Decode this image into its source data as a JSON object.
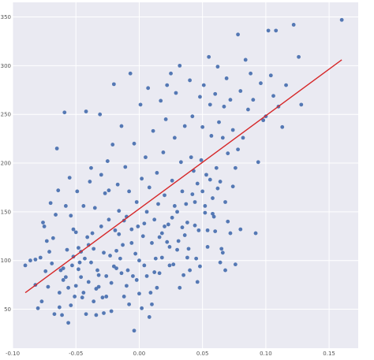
{
  "chart_data": {
    "type": "scatter",
    "title": "",
    "xlabel": "",
    "ylabel": "",
    "xlim": [
      -0.1,
      0.173
    ],
    "ylim": [
      10,
      365
    ],
    "xticks": [
      -0.1,
      -0.05,
      0.0,
      0.05,
      0.1,
      0.15
    ],
    "xtick_labels": [
      "-0.10",
      "-0.05",
      "0.00",
      "0.05",
      "0.10",
      "0.15"
    ],
    "yticks": [
      50,
      100,
      150,
      200,
      250,
      300,
      350
    ],
    "ytick_labels": [
      "50",
      "100",
      "150",
      "200",
      "250",
      "300",
      "350"
    ],
    "grid": true,
    "colors": {
      "plot_background": "#eaeaf2",
      "grid": "#ffffff",
      "points": "#4c72b0",
      "line": "#d62728",
      "tick_text": "#555555"
    },
    "series": [
      {
        "kind": "scatter",
        "points": [
          [
            -0.09,
            95
          ],
          [
            -0.082,
            101
          ],
          [
            -0.08,
            51
          ],
          [
            -0.078,
            103
          ],
          [
            -0.076,
            139
          ],
          [
            -0.075,
            135
          ],
          [
            -0.073,
            120
          ],
          [
            -0.072,
            73
          ],
          [
            -0.07,
            159
          ],
          [
            -0.068,
            123
          ],
          [
            -0.066,
            147
          ],
          [
            -0.065,
            215
          ],
          [
            -0.064,
            172
          ],
          [
            -0.063,
            67
          ],
          [
            -0.062,
            90
          ],
          [
            -0.061,
            44
          ],
          [
            -0.06,
            80
          ],
          [
            -0.059,
            252
          ],
          [
            -0.058,
            156
          ],
          [
            -0.057,
            111
          ],
          [
            -0.056,
            72
          ],
          [
            -0.055,
            185
          ],
          [
            -0.054,
            146
          ],
          [
            -0.053,
            95
          ],
          [
            -0.052,
            104
          ],
          [
            -0.051,
            63
          ],
          [
            -0.05,
            129
          ],
          [
            -0.049,
            171
          ],
          [
            -0.048,
            113
          ],
          [
            -0.047,
            98
          ],
          [
            -0.046,
            83
          ],
          [
            -0.045,
            62
          ],
          [
            -0.044,
            156
          ],
          [
            -0.043,
            102
          ],
          [
            -0.042,
            253
          ],
          [
            -0.041,
            124
          ],
          [
            -0.04,
            78
          ],
          [
            -0.039,
            181
          ],
          [
            -0.038,
            195
          ],
          [
            -0.037,
            128
          ],
          [
            -0.036,
            112
          ],
          [
            -0.035,
            154
          ],
          [
            -0.034,
            71
          ],
          [
            -0.033,
            90
          ],
          [
            -0.032,
            85
          ],
          [
            -0.031,
            250
          ],
          [
            -0.03,
            135
          ],
          [
            -0.029,
            62
          ],
          [
            -0.028,
            108
          ],
          [
            -0.027,
            169
          ],
          [
            -0.026,
            84
          ],
          [
            -0.025,
            202
          ],
          [
            -0.024,
            142
          ],
          [
            -0.023,
            105
          ],
          [
            -0.022,
            77
          ],
          [
            -0.021,
            219
          ],
          [
            -0.02,
            281
          ],
          [
            -0.019,
            131
          ],
          [
            -0.018,
            92
          ],
          [
            -0.017,
            178
          ],
          [
            -0.016,
            151
          ],
          [
            -0.015,
            102
          ],
          [
            -0.014,
            238
          ],
          [
            -0.013,
            116
          ],
          [
            -0.012,
            63
          ],
          [
            -0.011,
            196
          ],
          [
            -0.01,
            145
          ],
          [
            -0.009,
            90
          ],
          [
            -0.008,
            171
          ],
          [
            -0.007,
            292
          ],
          [
            -0.006,
            132
          ],
          [
            -0.005,
            84
          ],
          [
            -0.004,
            220
          ],
          [
            -0.003,
            107
          ],
          [
            -0.002,
            160
          ],
          [
            -0.001,
            135
          ],
          [
            0.0,
            100
          ],
          [
            0.001,
            260
          ],
          [
            0.002,
            184
          ],
          [
            0.003,
            125
          ],
          [
            0.004,
            95
          ],
          [
            0.005,
            206
          ],
          [
            0.006,
            150
          ],
          [
            0.007,
            277
          ],
          [
            0.008,
            175
          ],
          [
            0.009,
            67
          ],
          [
            0.01,
            118
          ],
          [
            0.011,
            233
          ],
          [
            0.012,
            142
          ],
          [
            0.013,
            102
          ],
          [
            0.014,
            190
          ],
          [
            0.015,
            158
          ],
          [
            0.016,
            87
          ],
          [
            0.017,
            264
          ],
          [
            0.018,
            128
          ],
          [
            0.019,
            211
          ],
          [
            0.02,
            167
          ],
          [
            0.021,
            245
          ],
          [
            0.022,
            280
          ],
          [
            0.023,
            137
          ],
          [
            0.024,
            114
          ],
          [
            0.025,
            292
          ],
          [
            0.026,
            182
          ],
          [
            0.027,
            96
          ],
          [
            0.028,
            226
          ],
          [
            0.029,
            272
          ],
          [
            0.03,
            150
          ],
          [
            0.031,
            120
          ],
          [
            0.032,
            300
          ],
          [
            0.033,
            201
          ],
          [
            0.034,
            171
          ],
          [
            0.035,
            85
          ],
          [
            0.036,
            238
          ],
          [
            0.037,
            158
          ],
          [
            0.038,
            139
          ],
          [
            0.039,
            112
          ],
          [
            0.04,
            285
          ],
          [
            0.041,
            206
          ],
          [
            0.042,
            248
          ],
          [
            0.043,
            192
          ],
          [
            0.044,
            160
          ],
          [
            0.045,
            102
          ],
          [
            0.046,
            179
          ],
          [
            0.047,
            131
          ],
          [
            0.048,
            268
          ],
          [
            0.049,
            203
          ],
          [
            0.05,
            237
          ],
          [
            0.051,
            280
          ],
          [
            0.052,
            149
          ],
          [
            0.053,
            188
          ],
          [
            0.054,
            114
          ],
          [
            0.055,
            309
          ],
          [
            0.056,
            260
          ],
          [
            0.057,
            228
          ],
          [
            0.058,
            164
          ],
          [
            0.059,
            145
          ],
          [
            0.06,
            271
          ],
          [
            0.061,
            195
          ],
          [
            0.062,
            299
          ],
          [
            0.063,
            242
          ],
          [
            0.064,
            181
          ],
          [
            0.065,
            112
          ],
          [
            0.066,
            226
          ],
          [
            0.067,
            258
          ],
          [
            0.068,
            160
          ],
          [
            0.069,
            287
          ],
          [
            0.07,
            210
          ],
          [
            0.072,
            265
          ],
          [
            0.074,
            234
          ],
          [
            0.076,
            195
          ],
          [
            0.078,
            332
          ],
          [
            0.08,
            274
          ],
          [
            0.082,
            226
          ],
          [
            0.084,
            306
          ],
          [
            0.086,
            255
          ],
          [
            0.088,
            292
          ],
          [
            0.09,
            265
          ],
          [
            0.092,
            128
          ],
          [
            0.094,
            201
          ],
          [
            0.096,
            282
          ],
          [
            0.098,
            244
          ],
          [
            0.1,
            248
          ],
          [
            0.102,
            336
          ],
          [
            0.104,
            290
          ],
          [
            0.106,
            269
          ],
          [
            0.108,
            336
          ],
          [
            0.11,
            258
          ],
          [
            0.113,
            237
          ],
          [
            0.116,
            280
          ],
          [
            0.122,
            342
          ],
          [
            0.126,
            309
          ],
          [
            0.128,
            260
          ],
          [
            0.16,
            347
          ],
          [
            -0.086,
            100
          ],
          [
            -0.082,
            75
          ],
          [
            -0.077,
            58
          ],
          [
            -0.074,
            89
          ],
          [
            -0.071,
            109
          ],
          [
            -0.069,
            97
          ],
          [
            -0.067,
            45
          ],
          [
            -0.063,
            52
          ],
          [
            -0.06,
            92
          ],
          [
            -0.058,
            83
          ],
          [
            -0.056,
            36
          ],
          [
            -0.054,
            54
          ],
          [
            -0.052,
            132
          ],
          [
            -0.05,
            74
          ],
          [
            -0.048,
            91
          ],
          [
            -0.046,
            109
          ],
          [
            -0.044,
            67
          ],
          [
            -0.042,
            45
          ],
          [
            -0.04,
            116
          ],
          [
            -0.038,
            98
          ],
          [
            -0.036,
            58
          ],
          [
            -0.034,
            44
          ],
          [
            -0.032,
            73
          ],
          [
            -0.03,
            188
          ],
          [
            -0.028,
            46
          ],
          [
            -0.026,
            63
          ],
          [
            -0.024,
            172
          ],
          [
            -0.022,
            48
          ],
          [
            -0.02,
            94
          ],
          [
            -0.018,
            110
          ],
          [
            -0.016,
            127
          ],
          [
            -0.014,
            87
          ],
          [
            -0.012,
            141
          ],
          [
            -0.01,
            74
          ],
          [
            -0.008,
            55
          ],
          [
            -0.006,
            118
          ],
          [
            -0.004,
            28
          ],
          [
            -0.002,
            80
          ],
          [
            0.0,
            66
          ],
          [
            0.002,
            51
          ],
          [
            0.004,
            138
          ],
          [
            0.006,
            84
          ],
          [
            0.008,
            42
          ],
          [
            0.01,
            55
          ],
          [
            0.012,
            88
          ],
          [
            0.014,
            72
          ],
          [
            0.016,
            124
          ],
          [
            0.018,
            103
          ],
          [
            0.02,
            135
          ],
          [
            0.022,
            119
          ],
          [
            0.024,
            95
          ],
          [
            0.026,
            144
          ],
          [
            0.028,
            156
          ],
          [
            0.03,
            111
          ],
          [
            0.032,
            72
          ],
          [
            0.034,
            134
          ],
          [
            0.036,
            126
          ],
          [
            0.038,
            103
          ],
          [
            0.04,
            90
          ],
          [
            0.042,
            168
          ],
          [
            0.044,
            136
          ],
          [
            0.046,
            78
          ],
          [
            0.048,
            94
          ],
          [
            0.05,
            171
          ],
          [
            0.052,
            156
          ],
          [
            0.054,
            131
          ],
          [
            0.056,
            183
          ],
          [
            0.058,
            148
          ],
          [
            0.06,
            130
          ],
          [
            0.062,
            174
          ],
          [
            0.064,
            98
          ],
          [
            0.066,
            108
          ],
          [
            0.068,
            90
          ],
          [
            0.07,
            140
          ],
          [
            0.072,
            128
          ],
          [
            0.074,
            176
          ],
          [
            0.076,
            96
          ],
          [
            0.078,
            214
          ],
          [
            0.08,
            132
          ]
        ]
      },
      {
        "kind": "line",
        "points": [
          [
            -0.09,
            67
          ],
          [
            0.16,
            306
          ]
        ]
      }
    ]
  }
}
